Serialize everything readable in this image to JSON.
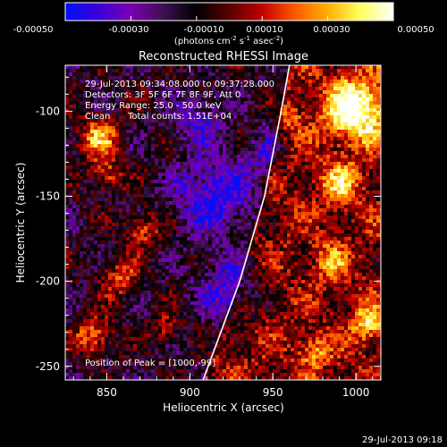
{
  "chart_data": {
    "type": "heatmap",
    "title": "Reconstructed RHESSI Image",
    "xlabel": "Heliocentric X (arcsec)",
    "ylabel": "Heliocentric Y (arcsec)",
    "xlim": [
      825,
      1015
    ],
    "ylim": [
      -258,
      -73
    ],
    "x_ticks": [
      850,
      900,
      950,
      1000
    ],
    "y_ticks": [
      -250,
      -200,
      -150,
      -100
    ],
    "colorbar": {
      "label_parts": [
        "(photons cm",
        "-2",
        " s",
        "-1",
        " asec",
        "-2",
        ")"
      ],
      "range": [
        -0.0005,
        0.0005
      ],
      "ticks": [
        "-0.00050",
        "-0.00030",
        "-0.00010",
        "0.00010",
        "0.00030",
        "0.00050"
      ],
      "colors": [
        "#0010ff",
        "#3a00d8",
        "#7a00b0",
        "#3c1050",
        "#000000",
        "#5a0000",
        "#c00000",
        "#ff5a00",
        "#ffb000",
        "#ffff60",
        "#ffffff"
      ]
    },
    "annotations": [
      "29-Jul-2013 09:34:08.000 to 09:37:28.000",
      "Detectors: 3F 5F 6F 7F 8F 9F, Att 0",
      "Energy Range: 25.0 - 50.0 keV",
      "Clean",
      "Total counts: 1.51E+04"
    ],
    "peak_label": "Position of Peak = [1000,-99]",
    "peak": [
      1000,
      -99
    ],
    "limb_curve": [
      [
        908,
        -258
      ],
      [
        930,
        -200
      ],
      [
        945,
        -150
      ],
      [
        955,
        -100
      ],
      [
        960,
        -73
      ]
    ],
    "features": [
      {
        "x": 1000,
        "y": -99,
        "radius": 18,
        "amplitude": 0.00055
      },
      {
        "x": 845,
        "y": -116,
        "radius": 12,
        "amplitude": 0.00042
      },
      {
        "x": 850,
        "y": -138,
        "radius": 9,
        "amplitude": 0.00028
      },
      {
        "x": 872,
        "y": -170,
        "radius": 10,
        "amplitude": 0.0003
      },
      {
        "x": 858,
        "y": -198,
        "radius": 11,
        "amplitude": 0.0003
      },
      {
        "x": 842,
        "y": -232,
        "radius": 11,
        "amplitude": 0.00035
      },
      {
        "x": 885,
        "y": -228,
        "radius": 8,
        "amplitude": 0.00022
      },
      {
        "x": 990,
        "y": -142,
        "radius": 12,
        "amplitude": 0.0003
      },
      {
        "x": 985,
        "y": -188,
        "radius": 10,
        "amplitude": 0.00026
      },
      {
        "x": 1008,
        "y": -225,
        "radius": 10,
        "amplitude": 0.00036
      },
      {
        "x": 975,
        "y": -242,
        "radius": 9,
        "amplitude": 0.00028
      },
      {
        "x": 960,
        "y": -105,
        "radius": 8,
        "amplitude": 0.00016
      },
      {
        "x": 915,
        "y": -150,
        "radius": 22,
        "amplitude": -0.00035
      },
      {
        "x": 925,
        "y": -205,
        "radius": 18,
        "amplitude": -0.0003
      },
      {
        "x": 905,
        "y": -105,
        "radius": 14,
        "amplitude": -0.00024
      },
      {
        "x": 945,
        "y": -125,
        "radius": 12,
        "amplitude": -0.0002
      }
    ]
  },
  "footer": {
    "timestamp": "29-Jul-2013 09:18"
  }
}
